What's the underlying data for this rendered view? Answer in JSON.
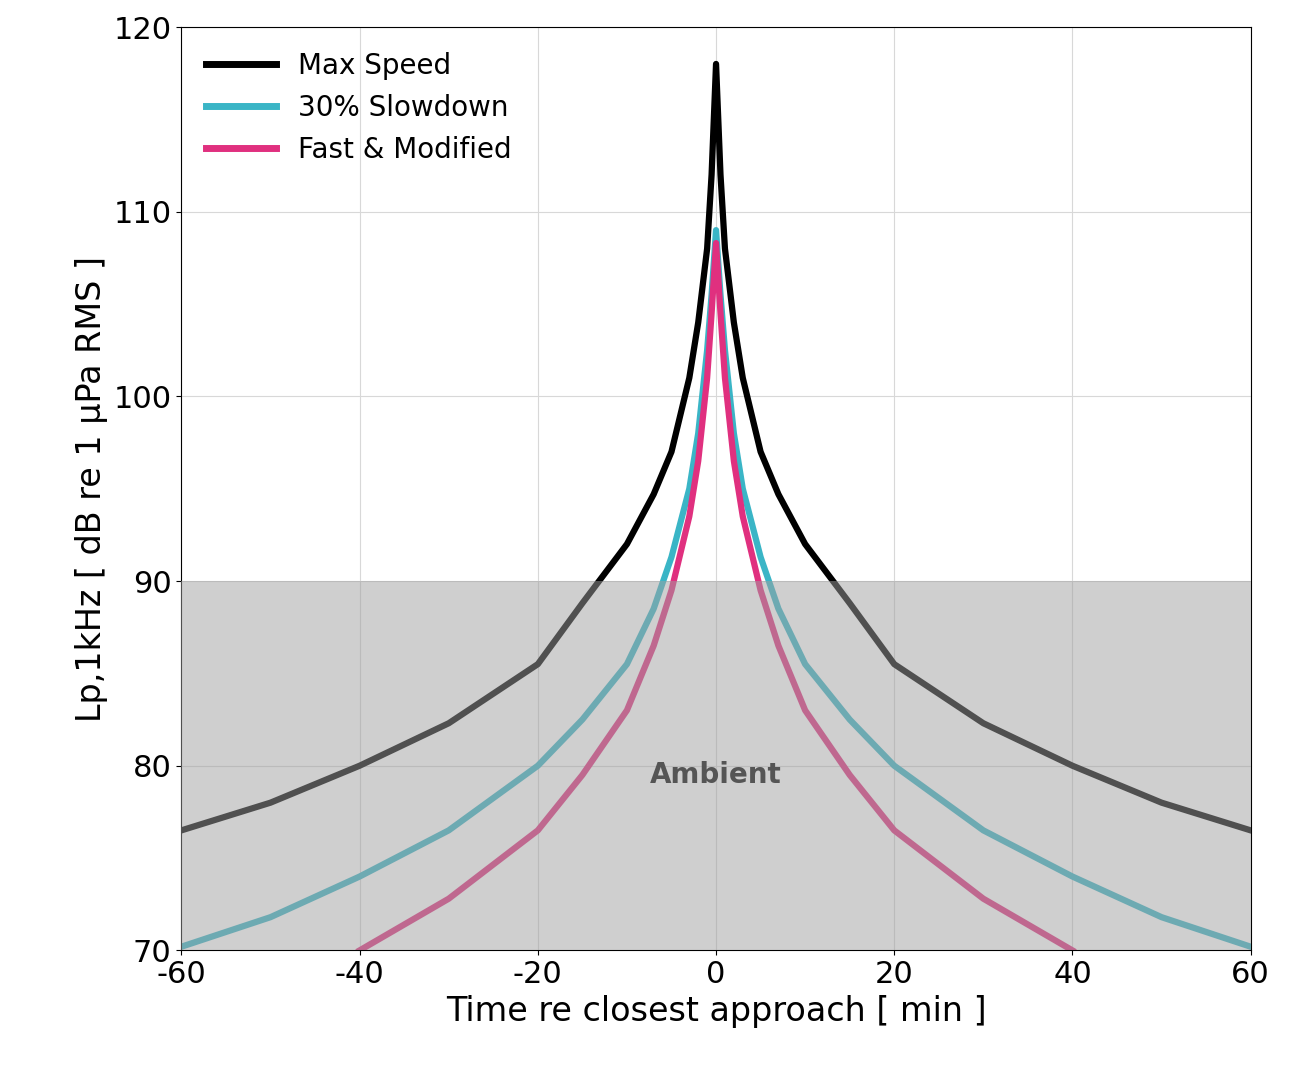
{
  "chart_data": {
    "type": "line",
    "x_label": "Time re closest approach [ min ]",
    "y_label": "Lp,1kHz [ dB re 1 μPa RMS ]",
    "x": [
      -60,
      -50,
      -40,
      -30,
      -20,
      -15,
      -10,
      -7,
      -5,
      -3,
      -2,
      -1,
      -0.5,
      0,
      0.5,
      1,
      2,
      3,
      5,
      7,
      10,
      15,
      20,
      30,
      40,
      50,
      60
    ],
    "series": [
      {
        "name": "Max Speed",
        "color": "#000000",
        "values": [
          76.5,
          78,
          80,
          82.3,
          85.5,
          88.8,
          92,
          94.7,
          97,
          101,
          104,
          108,
          112,
          118,
          112,
          108,
          104,
          101,
          97,
          94.7,
          92,
          88.8,
          85.5,
          82.3,
          80,
          78,
          76.5
        ]
      },
      {
        "name": "30% Slowdown",
        "color": "#3ab5c6",
        "values": [
          70.2,
          71.8,
          74,
          76.5,
          80,
          82.5,
          85.5,
          88.5,
          91.3,
          95,
          98,
          102.5,
          105.5,
          109,
          105.5,
          102.5,
          98,
          95,
          91.3,
          88.5,
          85.5,
          82.5,
          80,
          76.5,
          74,
          71.8,
          70.2
        ]
      },
      {
        "name": "Fast & Modified",
        "color": "#e0307f",
        "values": [
          null,
          null,
          70,
          72.8,
          76.5,
          79.5,
          83,
          86.5,
          89.5,
          93.5,
          96.5,
          101,
          104.5,
          108.3,
          104.5,
          101,
          96.5,
          93.5,
          89.5,
          86.5,
          83,
          79.5,
          76.5,
          72.8,
          70,
          null,
          null
        ]
      }
    ],
    "ambient_band": {
      "text": "Ambient",
      "ymin": 70,
      "ymax": 90
    },
    "xlim": [
      -60,
      60
    ],
    "xticks": [
      -60,
      -40,
      -20,
      0,
      20,
      40,
      60
    ],
    "ylim": [
      70,
      120
    ],
    "yticks": [
      70,
      80,
      90,
      100,
      110,
      120
    ],
    "grid": true,
    "legend": "upper left"
  }
}
